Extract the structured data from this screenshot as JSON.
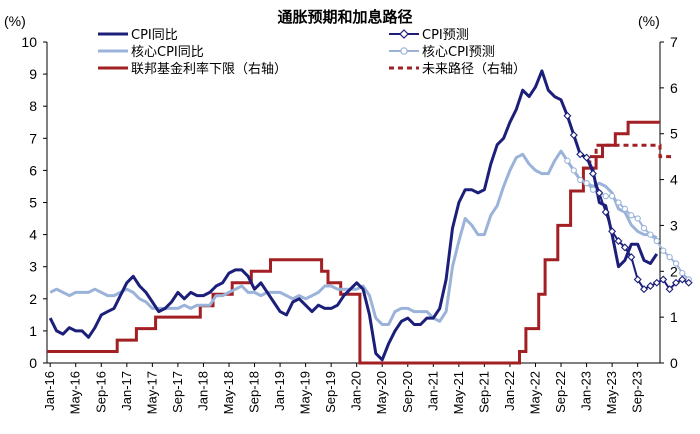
{
  "chart_data": {
    "type": "line",
    "title": "通胀预期和加息路径",
    "left_unit": "(%)",
    "right_unit": "(%)",
    "ylim_left": [
      0,
      10
    ],
    "ylim_right": [
      0,
      7
    ],
    "left_ticks": [
      "0",
      "1",
      "2",
      "3",
      "4",
      "5",
      "6",
      "7",
      "8",
      "9",
      "10"
    ],
    "right_ticks": [
      "0",
      "1",
      "2",
      "3",
      "4",
      "5",
      "6",
      "7"
    ],
    "x_tick_labels": [
      "Jan-16",
      "May-16",
      "Sep-16",
      "Jan-17",
      "May-17",
      "Sep-17",
      "Jan-18",
      "May-18",
      "Sep-18",
      "Jan-19",
      "May-19",
      "Sep-19",
      "Jan-20",
      "May-20",
      "Sep-20",
      "Jan-21",
      "May-21",
      "Sep-21",
      "Jan-22",
      "May-22",
      "Sep-22",
      "Jan-23",
      "May-23",
      "Sep-23"
    ],
    "x_start": "2016-01",
    "legend": {
      "cpi": "CPI同比",
      "core": "核心CPI同比",
      "fed": "联邦基金利率下限（右轴）",
      "cpi_fc": "CPI预测",
      "core_fc": "核心CPI预测",
      "fed_fc": "未来路径（右轴）"
    },
    "colors": {
      "cpi": "#1c1f7a",
      "core": "#9bb3d9",
      "fed": "#a21f23"
    },
    "series": [
      {
        "name": "CPI同比",
        "axis": "left",
        "start": "2016-01",
        "values": [
          1.4,
          1.0,
          0.9,
          1.1,
          1.0,
          1.0,
          0.8,
          1.1,
          1.5,
          1.6,
          1.7,
          2.1,
          2.5,
          2.7,
          2.4,
          2.2,
          1.9,
          1.6,
          1.7,
          1.9,
          2.2,
          2.0,
          2.2,
          2.1,
          2.1,
          2.2,
          2.4,
          2.5,
          2.8,
          2.9,
          2.9,
          2.7,
          2.3,
          2.5,
          2.2,
          1.9,
          1.6,
          1.5,
          1.9,
          2.0,
          1.8,
          1.6,
          1.8,
          1.7,
          1.7,
          1.8,
          2.1,
          2.3,
          2.5,
          2.3,
          1.5,
          0.3,
          0.1,
          0.6,
          1.0,
          1.3,
          1.4,
          1.2,
          1.2,
          1.4,
          1.4,
          1.7,
          2.6,
          4.2,
          5.0,
          5.4,
          5.4,
          5.3,
          5.4,
          6.2,
          6.8,
          7.0,
          7.5,
          7.9,
          8.5,
          8.3,
          8.6,
          9.1,
          8.5,
          8.3,
          8.2,
          7.7,
          7.1,
          6.5,
          6.4,
          6.0,
          5.0,
          4.9,
          4.0,
          3.0,
          3.2,
          3.7,
          3.7,
          3.2,
          3.1,
          3.4
        ]
      },
      {
        "name": "核心CPI同比",
        "axis": "left",
        "start": "2016-01",
        "values": [
          2.2,
          2.3,
          2.2,
          2.1,
          2.2,
          2.2,
          2.2,
          2.3,
          2.2,
          2.1,
          2.1,
          2.2,
          2.3,
          2.2,
          2.0,
          1.9,
          1.7,
          1.7,
          1.7,
          1.7,
          1.7,
          1.8,
          1.7,
          1.8,
          1.8,
          1.8,
          2.1,
          2.1,
          2.2,
          2.3,
          2.4,
          2.2,
          2.2,
          2.1,
          2.2,
          2.2,
          2.2,
          2.1,
          2.0,
          2.1,
          2.0,
          2.1,
          2.2,
          2.4,
          2.4,
          2.3,
          2.3,
          2.3,
          2.3,
          2.4,
          2.1,
          1.4,
          1.2,
          1.2,
          1.6,
          1.7,
          1.7,
          1.6,
          1.6,
          1.6,
          1.4,
          1.3,
          1.6,
          3.0,
          3.8,
          4.5,
          4.3,
          4.0,
          4.0,
          4.6,
          4.9,
          5.5,
          6.0,
          6.4,
          6.5,
          6.2,
          6.0,
          5.9,
          5.9,
          6.3,
          6.6,
          6.3,
          6.0,
          5.7,
          5.6,
          5.5,
          5.6,
          5.5,
          5.3,
          4.8,
          4.7,
          4.3,
          4.1,
          4.0,
          4.0,
          3.9
        ]
      },
      {
        "name": "联邦基金利率下限（右轴）",
        "axis": "right",
        "start": "2016-01",
        "values": [
          0.25,
          0.25,
          0.25,
          0.25,
          0.25,
          0.25,
          0.25,
          0.25,
          0.25,
          0.25,
          0.25,
          0.5,
          0.5,
          0.5,
          0.75,
          0.75,
          0.75,
          1.0,
          1.0,
          1.0,
          1.0,
          1.0,
          1.0,
          1.0,
          1.25,
          1.25,
          1.5,
          1.5,
          1.5,
          1.75,
          1.75,
          1.75,
          2.0,
          2.0,
          2.0,
          2.25,
          2.25,
          2.25,
          2.25,
          2.25,
          2.25,
          2.25,
          2.25,
          2.0,
          1.75,
          1.75,
          1.5,
          1.5,
          1.5,
          0.0,
          0.0,
          0.0,
          0.0,
          0.0,
          0.0,
          0.0,
          0.0,
          0.0,
          0.0,
          0.0,
          0.0,
          0.0,
          0.0,
          0.0,
          0.0,
          0.0,
          0.0,
          0.0,
          0.0,
          0.0,
          0.0,
          0.0,
          0.0,
          0.0,
          0.25,
          0.75,
          0.75,
          1.5,
          2.25,
          2.25,
          3.0,
          3.0,
          3.75,
          3.75,
          4.25,
          4.25,
          4.5,
          4.75,
          4.75,
          5.0,
          5.0,
          5.25,
          5.25,
          5.25,
          5.25,
          5.25
        ]
      },
      {
        "name": "CPI预测",
        "axis": "left",
        "start": "2022-10",
        "values": [
          7.7,
          7.1,
          6.5,
          6.4,
          5.9,
          5.3,
          4.7,
          4.1,
          3.8,
          3.6,
          3.3,
          2.6,
          2.3,
          2.4,
          2.5,
          2.6,
          2.3,
          2.5,
          2.6,
          2.5
        ]
      },
      {
        "name": "核心CPI预测",
        "axis": "left",
        "start": "2022-10",
        "values": [
          6.3,
          6.0,
          5.7,
          5.6,
          5.4,
          5.3,
          5.2,
          5.2,
          5.0,
          4.8,
          4.6,
          4.5,
          4.2,
          4.0,
          3.8,
          3.5,
          3.3,
          3.1,
          2.8,
          2.6
        ]
      },
      {
        "name": "未来路径（右轴）",
        "axis": "right",
        "start": "2023-01",
        "values": [
          4.25,
          4.5,
          4.75,
          4.75,
          4.75,
          4.75,
          4.75,
          4.75,
          4.75,
          4.75,
          4.75,
          4.75,
          4.5,
          4.5
        ]
      }
    ]
  }
}
